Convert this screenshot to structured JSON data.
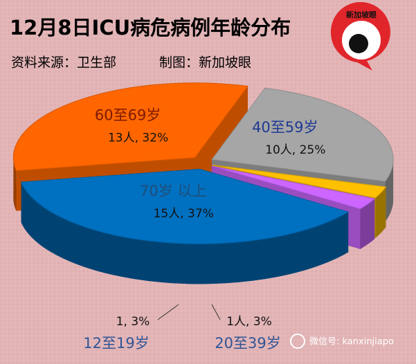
{
  "chart_data": {
    "type": "pie",
    "title": "12月8日ICU病危病例年龄分布",
    "source": "资料来源：卫生部",
    "credit": "制图：新加坡眼",
    "logo": "新加坡眼",
    "watermark": "微信号: kanxinjiapo",
    "categories": [
      "60至69岁",
      "40至59岁",
      "20至39岁",
      "12至19岁",
      "70岁 以上"
    ],
    "values": [
      13,
      10,
      1,
      1,
      15
    ],
    "value_labels": [
      "13人, 32%",
      "10人, 25%",
      "1人, 3%",
      "1, 3%",
      "15人, 37%"
    ],
    "colors": [
      "#ff6600",
      "#a6a6a6",
      "#ffc000",
      "#cc66ff",
      "#0070c0"
    ]
  }
}
